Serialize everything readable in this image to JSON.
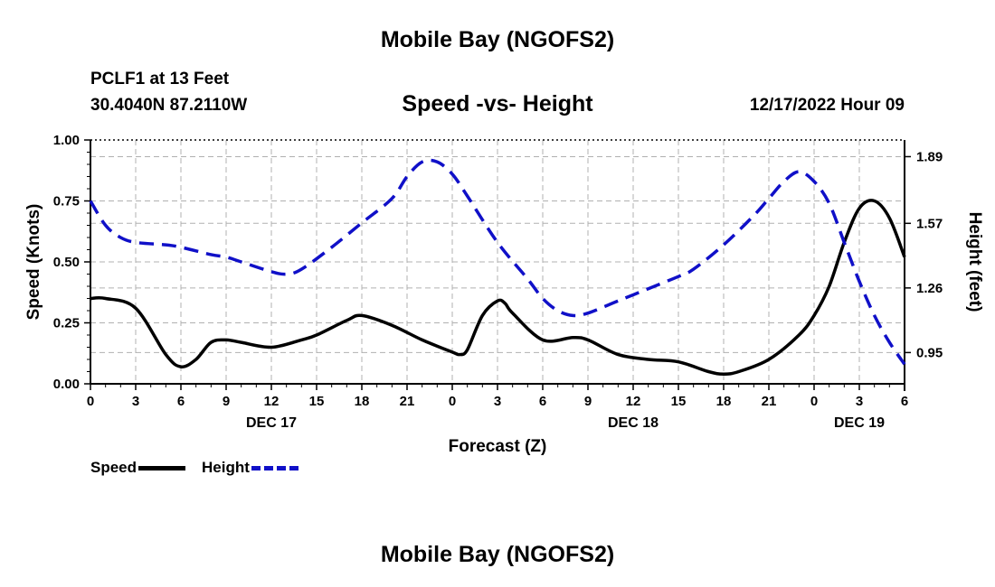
{
  "page": {
    "main_title": "Mobile Bay (NGOFS2)",
    "station": "PCLF1 at 13 Feet",
    "coords": "30.4040N  87.2110W",
    "chart_title": "Speed -vs- Height",
    "datetime": "12/17/2022 Hour 09",
    "bottom_title": "Mobile Bay (NGOFS2)"
  },
  "legend": {
    "speed_label": "Speed",
    "height_label": "Height",
    "speed_color": "#000000",
    "height_color": "#1010c8"
  },
  "chart_data": {
    "type": "line",
    "title": "Speed -vs- Height",
    "xlabel": "Forecast (Z)",
    "ylabel_left": "Speed (Knots)",
    "ylabel_right": "Height (feet)",
    "x_range_hours": [
      0,
      54
    ],
    "x_tick_labels": [
      "0",
      "3",
      "6",
      "9",
      "12",
      "15",
      "18",
      "21",
      "0",
      "3",
      "6",
      "9",
      "12",
      "15",
      "18",
      "21",
      "0",
      "3",
      "6"
    ],
    "x_tick_hours": [
      0,
      3,
      6,
      9,
      12,
      15,
      18,
      21,
      24,
      27,
      30,
      33,
      36,
      39,
      42,
      45,
      48,
      51,
      54
    ],
    "day_labels": [
      {
        "label": "DEC 17",
        "hour": 12
      },
      {
        "label": "DEC 18",
        "hour": 36
      },
      {
        "label": "DEC 19",
        "hour": 51
      }
    ],
    "y_left_range": [
      0,
      1
    ],
    "y_left_ticks": [
      "0.00",
      "0.25",
      "0.50",
      "0.75",
      "1.00"
    ],
    "y_left_tick_values": [
      0,
      0.25,
      0.5,
      0.75,
      1.0
    ],
    "y_right_range": [
      0.8,
      1.97
    ],
    "y_right_ticks": [
      "0.95",
      "1.26",
      "1.57",
      "1.89"
    ],
    "y_right_tick_values": [
      0.95,
      1.26,
      1.57,
      1.89
    ],
    "grid": true,
    "series": [
      {
        "name": "Speed",
        "axis": "left",
        "style": "solid",
        "color": "#000000",
        "x": [
          0,
          1,
          3,
          5,
          6,
          7,
          8,
          9,
          10,
          12,
          14,
          15,
          17,
          18,
          20,
          22,
          24,
          24.5,
          25,
          26,
          27,
          27.5,
          28,
          30,
          32,
          33,
          35,
          37,
          39,
          41,
          42,
          43,
          45,
          47,
          48,
          49,
          50,
          51,
          52,
          53,
          54
        ],
        "y": [
          0.35,
          0.35,
          0.31,
          0.12,
          0.07,
          0.1,
          0.17,
          0.18,
          0.17,
          0.15,
          0.18,
          0.2,
          0.26,
          0.28,
          0.24,
          0.18,
          0.13,
          0.12,
          0.14,
          0.28,
          0.34,
          0.33,
          0.29,
          0.18,
          0.19,
          0.18,
          0.12,
          0.1,
          0.09,
          0.05,
          0.04,
          0.05,
          0.1,
          0.2,
          0.28,
          0.4,
          0.58,
          0.72,
          0.75,
          0.68,
          0.52
        ]
      },
      {
        "name": "Height",
        "axis": "left",
        "style": "dashed",
        "color": "#1010c8",
        "x": [
          0,
          1,
          2,
          3,
          5,
          6,
          8,
          9,
          10,
          12,
          13,
          14,
          16,
          18,
          20,
          21,
          22,
          23,
          24,
          25,
          27,
          29,
          30,
          31,
          32,
          33,
          35,
          37,
          39,
          40,
          42,
          44,
          45,
          46,
          47,
          48,
          49,
          50,
          51,
          52,
          53,
          54
        ],
        "y": [
          0.75,
          0.65,
          0.6,
          0.58,
          0.57,
          0.56,
          0.53,
          0.52,
          0.5,
          0.46,
          0.45,
          0.47,
          0.56,
          0.66,
          0.76,
          0.85,
          0.91,
          0.91,
          0.86,
          0.77,
          0.58,
          0.43,
          0.35,
          0.3,
          0.28,
          0.29,
          0.34,
          0.39,
          0.44,
          0.47,
          0.57,
          0.69,
          0.76,
          0.83,
          0.87,
          0.83,
          0.74,
          0.58,
          0.42,
          0.28,
          0.17,
          0.08
        ]
      }
    ]
  }
}
